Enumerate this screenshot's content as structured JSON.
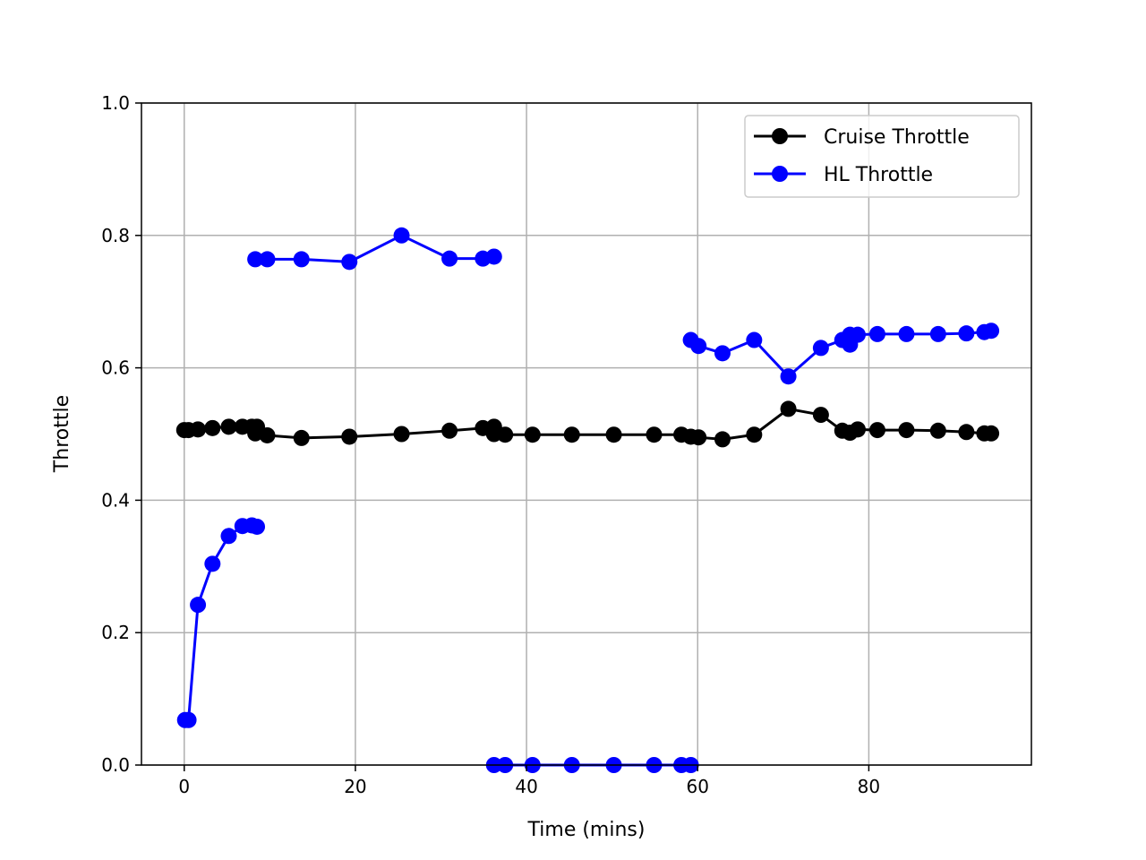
{
  "chart_data": {
    "type": "line",
    "title": "",
    "xlabel": "Time (mins)",
    "ylabel": "Throttle",
    "xlim": [
      -5,
      99
    ],
    "ylim": [
      0.0,
      1.0
    ],
    "xticks": [
      0,
      20,
      40,
      60,
      80
    ],
    "yticks": [
      0.0,
      0.2,
      0.4,
      0.6,
      0.8,
      1.0
    ],
    "xtick_labels": [
      "0",
      "20",
      "40",
      "60",
      "80"
    ],
    "ytick_labels": [
      "0.0",
      "0.2",
      "0.4",
      "0.6",
      "0.8",
      "1.0"
    ],
    "grid": true,
    "legend_position": "top-right",
    "series": [
      {
        "name": "Cruise Throttle",
        "color": "#000000",
        "marker": "circle",
        "segments": [
          [
            [
              0.0,
              0.506
            ],
            [
              0.5,
              0.506
            ],
            [
              1.6,
              0.507
            ],
            [
              3.3,
              0.509
            ],
            [
              5.2,
              0.511
            ],
            [
              6.8,
              0.511
            ],
            [
              7.9,
              0.511
            ],
            [
              8.5,
              0.511
            ],
            [
              8.3,
              0.501
            ],
            [
              9.7,
              0.498
            ],
            [
              13.7,
              0.494
            ],
            [
              19.3,
              0.496
            ],
            [
              25.4,
              0.5
            ],
            [
              31.0,
              0.505
            ],
            [
              34.9,
              0.509
            ],
            [
              36.2,
              0.511
            ],
            [
              36.2,
              0.5
            ],
            [
              37.5,
              0.499
            ],
            [
              40.7,
              0.499
            ],
            [
              45.3,
              0.499
            ],
            [
              50.2,
              0.499
            ],
            [
              54.9,
              0.499
            ],
            [
              58.1,
              0.499
            ],
            [
              59.2,
              0.496
            ],
            [
              60.1,
              0.495
            ],
            [
              62.9,
              0.492
            ],
            [
              66.6,
              0.499
            ],
            [
              70.6,
              0.538
            ],
            [
              74.4,
              0.529
            ],
            [
              76.9,
              0.505
            ],
            [
              77.8,
              0.502
            ],
            [
              78.7,
              0.507
            ],
            [
              81.0,
              0.506
            ],
            [
              84.4,
              0.506
            ],
            [
              88.1,
              0.505
            ],
            [
              91.4,
              0.503
            ],
            [
              93.5,
              0.501
            ],
            [
              94.3,
              0.501
            ]
          ]
        ]
      },
      {
        "name": "HL Throttle",
        "color": "#0000ff",
        "marker": "circle",
        "segments": [
          [
            [
              0.1,
              0.068
            ],
            [
              0.5,
              0.068
            ],
            [
              1.6,
              0.242
            ],
            [
              3.3,
              0.304
            ],
            [
              5.2,
              0.346
            ],
            [
              6.8,
              0.361
            ],
            [
              7.9,
              0.362
            ],
            [
              8.5,
              0.36
            ]
          ],
          [
            [
              8.3,
              0.764
            ],
            [
              9.7,
              0.764
            ],
            [
              13.7,
              0.764
            ],
            [
              19.3,
              0.76
            ],
            [
              25.4,
              0.8
            ],
            [
              31.0,
              0.765
            ],
            [
              34.9,
              0.765
            ],
            [
              36.2,
              0.768
            ]
          ],
          [
            [
              36.2,
              0.0
            ],
            [
              37.5,
              0.0
            ],
            [
              40.7,
              0.0
            ],
            [
              45.3,
              0.0
            ],
            [
              50.2,
              0.0
            ],
            [
              54.9,
              0.0
            ],
            [
              58.1,
              0.0
            ],
            [
              59.2,
              0.0
            ]
          ],
          [
            [
              59.2,
              0.642
            ],
            [
              60.1,
              0.633
            ],
            [
              62.9,
              0.622
            ],
            [
              66.6,
              0.642
            ],
            [
              70.6,
              0.587
            ],
            [
              74.4,
              0.63
            ],
            [
              76.9,
              0.642
            ],
            [
              77.8,
              0.635
            ],
            [
              77.8,
              0.65
            ],
            [
              78.7,
              0.65
            ],
            [
              81.0,
              0.651
            ],
            [
              84.4,
              0.651
            ],
            [
              88.1,
              0.651
            ],
            [
              91.4,
              0.652
            ],
            [
              93.5,
              0.654
            ],
            [
              94.3,
              0.656
            ]
          ]
        ]
      }
    ]
  }
}
